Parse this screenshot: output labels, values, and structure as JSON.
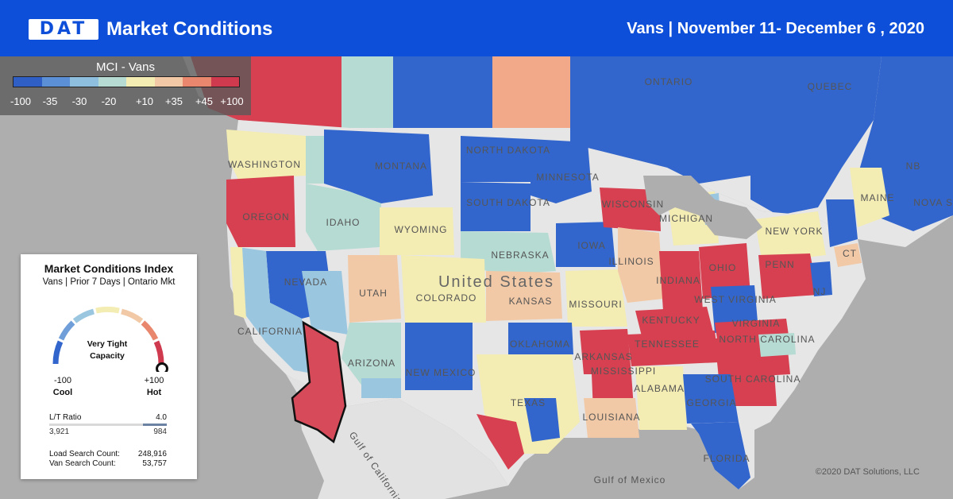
{
  "header": {
    "logo": "DAT",
    "title": "Market Conditions",
    "subtitle": "Vans  |  November 11- December 6 , 2020"
  },
  "legend": {
    "title": "MCI - Vans",
    "colors": [
      "#2f5fc4",
      "#5b8fd6",
      "#8fbfdf",
      "#b6dbd3",
      "#f3ecb3",
      "#f2c9a6",
      "#e8876d",
      "#d03a4f"
    ],
    "ticks": [
      "-100",
      "-35",
      "-30",
      "-20",
      "+10",
      "+35",
      "+45",
      "+100"
    ]
  },
  "panel": {
    "title": "Market Conditions Index",
    "subtitle": "Vans | Prior 7 Days | Ontario Mkt",
    "status": "Very Tight Capacity",
    "gauge_value": 100,
    "low_value": "-100",
    "low_label": "Cool",
    "high_value": "+100",
    "high_label": "Hot",
    "lt_label": "L/T Ratio",
    "lt_value": "4.0",
    "loads": "3,921",
    "trucks": "984",
    "load_search_label": "Load Search Count:",
    "load_search_value": "248,916",
    "van_search_label": "Van Search Count:",
    "van_search_value": "53,757"
  },
  "map": {
    "colors": {
      "ocean": "#aeaeae",
      "land": "#e6e6e6",
      "water": "#aeaeae",
      "dark_blue": "#3366cc",
      "light_blue": "#6f9ed9",
      "sky": "#9ac6e0",
      "teal": "#b6dbd3",
      "yellow": "#f3ecb3",
      "peach": "#f2c9a6",
      "salmon": "#e89b7d",
      "red": "#d64050",
      "selected": "#d64a5a"
    },
    "labels": [
      "ONTARIO",
      "QUEBEC",
      "NB",
      "NOVA SC",
      "WASHINGTON",
      "MONTANA",
      "NORTH DAKOTA",
      "MINNESOTA",
      "OREGON",
      "IDAHO",
      "WYOMING",
      "SOUTH DAKOTA",
      "WISCONSIN",
      "MICHIGAN",
      "NEW YORK",
      "MAINE",
      "NEBRASKA",
      "IOWA",
      "ILLINOIS",
      "INDIANA",
      "OHIO",
      "PENN",
      "NJ",
      "CT",
      "NEVADA",
      "UTAH",
      "COLORADO",
      "United States",
      "KANSAS",
      "MISSOURI",
      "KENTUCKY",
      "WEST VIRGINIA",
      "VIRGINIA",
      "CALIFORNIA",
      "ARIZONA",
      "NEW MEXICO",
      "OKLAHOMA",
      "ARKANSAS",
      "TENNESSEE",
      "NORTH CAROLINA",
      "SOUTH CAROLINA",
      "MISSISSIPPI",
      "ALABAMA",
      "GEORGIA",
      "TEXAS",
      "LOUISIANA",
      "FLORIDA",
      "Gulf of California",
      "Gulf of Mexico"
    ],
    "selected_market": "Ontario Mkt"
  },
  "copyright": "©2020 DAT Solutions, LLC"
}
